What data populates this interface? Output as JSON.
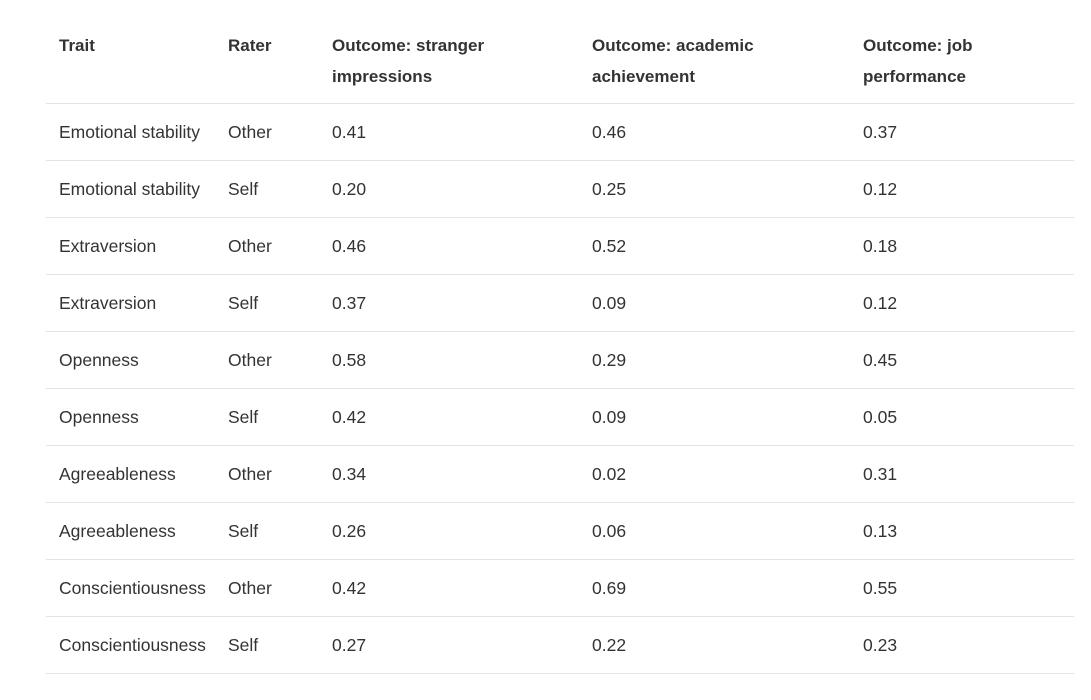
{
  "table": {
    "headers": [
      "Trait",
      "Rater",
      "Outcome: stranger impressions",
      "Outcome: academic achievement",
      "Outcome: job performance"
    ],
    "rows": [
      [
        "Emotional stability",
        "Other",
        "0.41",
        "0.46",
        "0.37"
      ],
      [
        "Emotional stability",
        "Self",
        "0.20",
        "0.25",
        "0.12"
      ],
      [
        "Extraversion",
        "Other",
        "0.46",
        "0.52",
        "0.18"
      ],
      [
        "Extraversion",
        "Self",
        "0.37",
        "0.09",
        "0.12"
      ],
      [
        "Openness",
        "Other",
        "0.58",
        "0.29",
        "0.45"
      ],
      [
        "Openness",
        "Self",
        "0.42",
        "0.09",
        "0.05"
      ],
      [
        "Agreeableness",
        "Other",
        "0.34",
        "0.02",
        "0.31"
      ],
      [
        "Agreeableness",
        "Self",
        "0.26",
        "0.06",
        "0.13"
      ],
      [
        "Conscientiousness",
        "Other",
        "0.42",
        "0.69",
        "0.55"
      ],
      [
        "Conscientiousness",
        "Self",
        "0.27",
        "0.22",
        "0.23"
      ]
    ]
  }
}
